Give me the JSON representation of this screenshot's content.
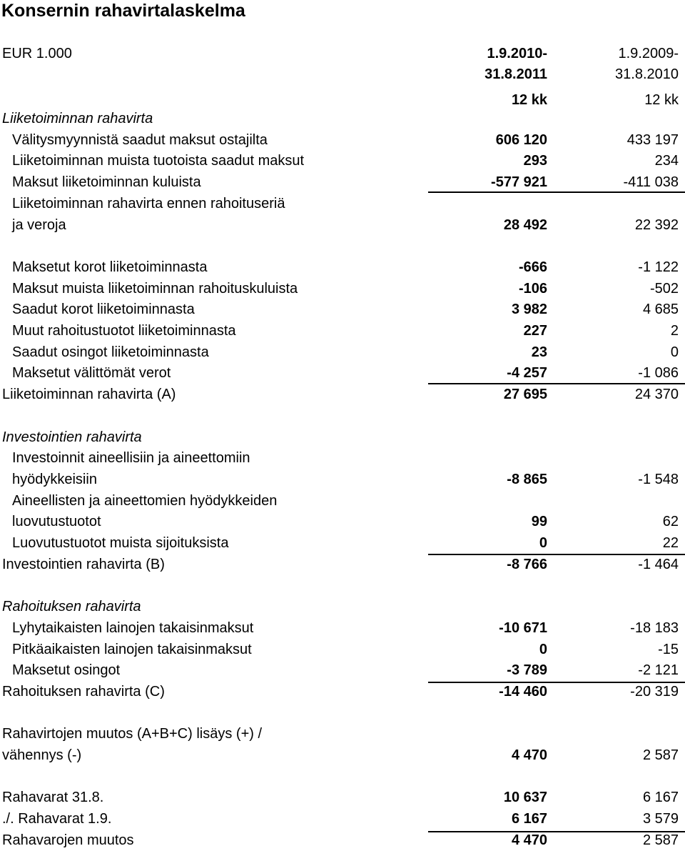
{
  "title": "Konsernin rahavirtalaskelma",
  "header": {
    "currency": "EUR 1.000",
    "col1_line1": "1.9.2010-",
    "col1_line2": "31.8.2011",
    "col1_line3": "12 kk",
    "col2_line1": "1.9.2009-",
    "col2_line2": "31.8.2010",
    "col2_line3": "12 kk"
  },
  "rows": [
    {
      "label": "Liiketoiminnan rahavirta",
      "style": "italic"
    },
    {
      "label": "Välitysmyynnistä saadut maksut ostajilta",
      "style": "indent",
      "c1": "606 120",
      "c2": "433 197"
    },
    {
      "label": "Liiketoiminnan muista tuotoista saadut maksut",
      "style": "indent",
      "c1": "293",
      "c2": "234"
    },
    {
      "label": "Maksut liiketoiminnan kuluista",
      "style": "indent",
      "c1": "-577 921",
      "c2": "-411 038"
    },
    {
      "label": "Liiketoiminnan rahavirta ennen rahoituseriä",
      "style": "indent"
    },
    {
      "label": "ja veroja",
      "style": "indent",
      "c1": "28 492",
      "c2": "22 392"
    },
    {
      "label": "",
      "style": "blank"
    },
    {
      "label": "Maksetut korot liiketoiminnasta",
      "style": "indent",
      "c1": "-666",
      "c2": "-1 122"
    },
    {
      "label": "Maksut muista liiketoiminnan rahoituskuluista",
      "style": "indent",
      "c1": "-106",
      "c2": "-502"
    },
    {
      "label": "Saadut korot liiketoiminnasta",
      "style": "indent",
      "c1": "3 982",
      "c2": "4 685"
    },
    {
      "label": "Muut rahoitustuotot liiketoiminnasta",
      "style": "indent",
      "c1": "227",
      "c2": "2"
    },
    {
      "label": "Saadut osingot liiketoiminnasta",
      "style": "indent",
      "c1": "23",
      "c2": "0"
    },
    {
      "label": "Maksetut välittömät verot",
      "style": "indent",
      "c1": "-4 257",
      "c2": "-1 086"
    },
    {
      "label": "Liiketoiminnan rahavirta (A)",
      "style": "plain",
      "c1": "27 695",
      "c2": "24 370"
    },
    {
      "label": "",
      "style": "blank"
    },
    {
      "label": "Investointien rahavirta",
      "style": "italic"
    },
    {
      "label": "Investoinnit aineellisiin ja aineettomiin",
      "style": "indent"
    },
    {
      "label": "hyödykkeisiin",
      "style": "indent",
      "c1": "-8 865",
      "c2": "-1 548"
    },
    {
      "label": "Aineellisten ja aineettomien hyödykkeiden",
      "style": "indent"
    },
    {
      "label": "luovutustuotot",
      "style": "indent",
      "c1": "99",
      "c2": "62"
    },
    {
      "label": "Luovutustuotot muista sijoituksista",
      "style": "indent",
      "c1": "0",
      "c2": "22"
    },
    {
      "label": "Investointien rahavirta (B)",
      "style": "plain",
      "c1": "-8 766",
      "c2": "-1 464"
    },
    {
      "label": "",
      "style": "blank"
    },
    {
      "label": "Rahoituksen rahavirta",
      "style": "italic"
    },
    {
      "label": "Lyhytaikaisten lainojen takaisinmaksut",
      "style": "indent",
      "c1": "-10 671",
      "c2": "-18 183"
    },
    {
      "label": "Pitkäaikaisten lainojen takaisinmaksut",
      "style": "indent",
      "c1": "0",
      "c2": "-15"
    },
    {
      "label": "Maksetut osingot",
      "style": "indent",
      "c1": "-3 789",
      "c2": "-2 121"
    },
    {
      "label": "Rahoituksen rahavirta (C)",
      "style": "plain",
      "c1": "-14 460",
      "c2": "-20 319"
    },
    {
      "label": "",
      "style": "blank"
    },
    {
      "label": "Rahavirtojen muutos (A+B+C) lisäys (+) /",
      "style": "plain"
    },
    {
      "label": "vähennys (-)",
      "style": "plain",
      "c1": "4 470",
      "c2": "2 587"
    },
    {
      "label": "",
      "style": "blank"
    },
    {
      "label": "Rahavarat 31.8.",
      "style": "plain",
      "c1": "10 637",
      "c2": "6 167"
    },
    {
      "label": "./. Rahavarat 1.9.",
      "style": "plain",
      "c1": "6 167",
      "c2": "3 579"
    },
    {
      "label": "Rahavarojen muutos",
      "style": "plain",
      "c1": "4 470",
      "c2": "2 587"
    }
  ]
}
